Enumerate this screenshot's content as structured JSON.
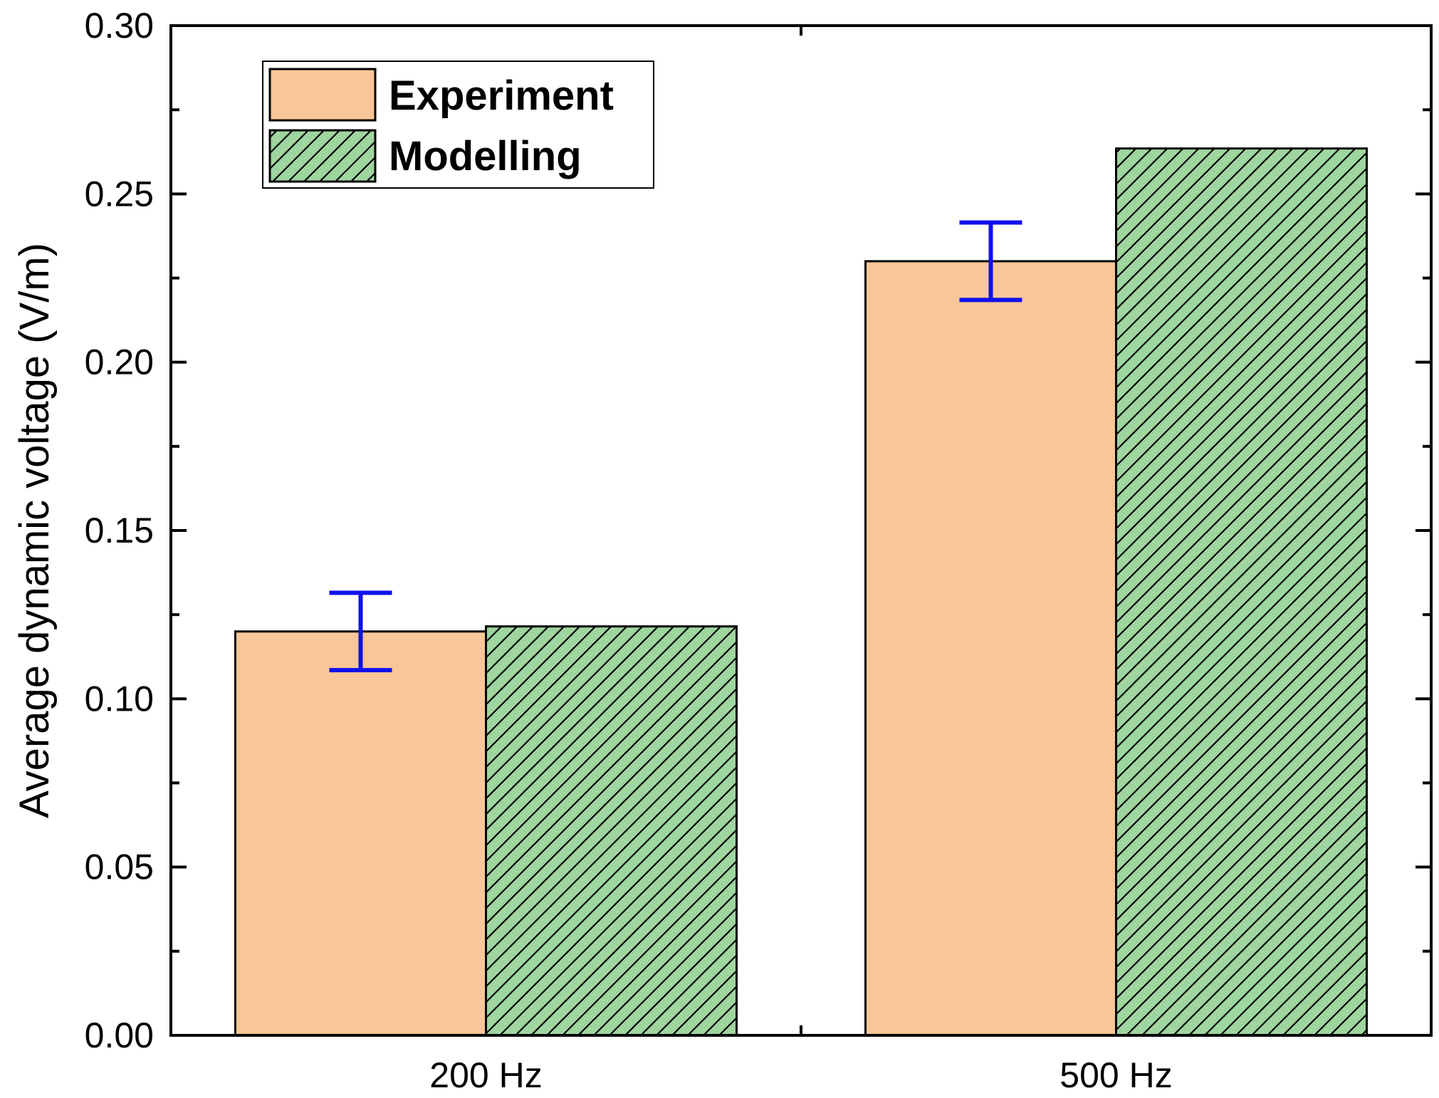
{
  "chart_data": {
    "type": "bar",
    "title": "",
    "xlabel": "",
    "ylabel": "Average dynamic voltage (V/m)",
    "categories": [
      "200 Hz",
      "500 Hz"
    ],
    "ylim": [
      0,
      0.3
    ],
    "yticks": [
      "0.00",
      "0.05",
      "0.10",
      "0.15",
      "0.20",
      "0.25",
      "0.30"
    ],
    "ytick_values": [
      0,
      0.05,
      0.1,
      0.15,
      0.2,
      0.25,
      0.3
    ],
    "grid": false,
    "legend_position": "top-left",
    "series": [
      {
        "name": "Experiment",
        "values": [
          0.12,
          0.23
        ],
        "error": [
          0.0115,
          0.0115
        ],
        "color": "#f9c697",
        "pattern": "solid",
        "error_color": "#1010ee"
      },
      {
        "name": "Modelling",
        "values": [
          0.1215,
          0.2635
        ],
        "color": "#9fd59f",
        "pattern": "diagonal-hatch"
      }
    ]
  }
}
